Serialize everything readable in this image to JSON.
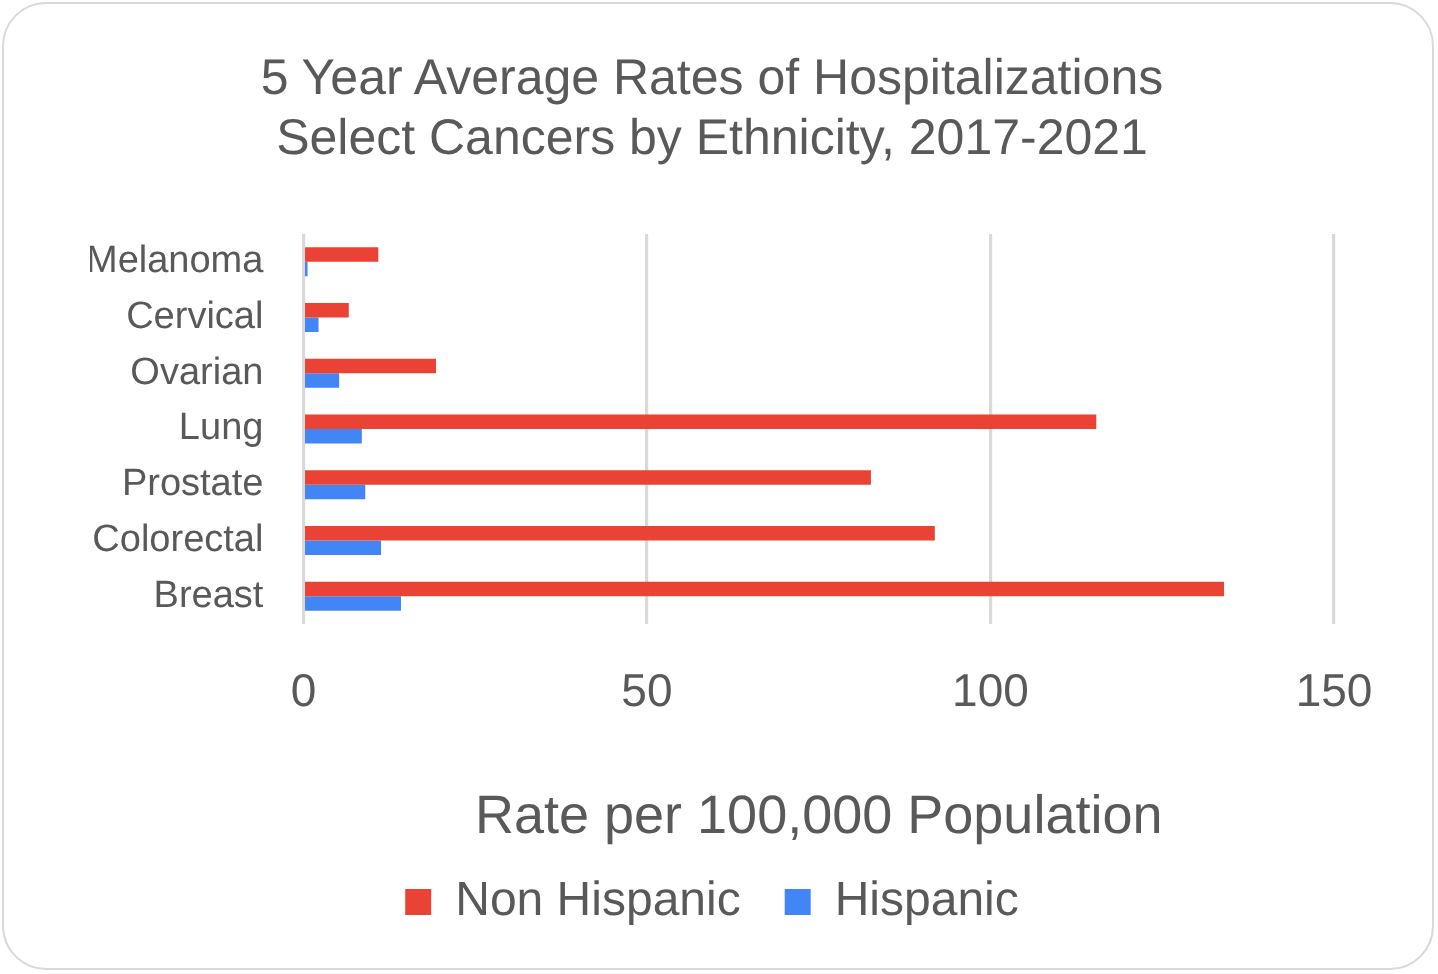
{
  "chart_data": {
    "type": "bar",
    "orientation": "horizontal",
    "title": "5 Year Average Rates of Hospitalizations\nSelect Cancers by Ethnicity, 2017-2021",
    "xlabel": "Rate per 100,000 Population",
    "categories": [
      "Melanoma",
      "Cervical",
      "Ovarian",
      "Lung",
      "Prostate",
      "Colorectal",
      "Breast"
    ],
    "series": [
      {
        "name": "Non Hispanic",
        "color": "#ea4335",
        "values": [
          10.9,
          6.6,
          19.3,
          115.4,
          82.6,
          91.9,
          134.0
        ]
      },
      {
        "name": "Hispanic",
        "color": "#4285f4",
        "values": [
          0.6,
          2.2,
          5.2,
          8.5,
          9.0,
          11.3,
          14.2
        ]
      }
    ],
    "xlim": [
      0,
      150
    ],
    "xticks": [
      0,
      50,
      100,
      150
    ],
    "grid": "x",
    "legend": "bottom"
  }
}
